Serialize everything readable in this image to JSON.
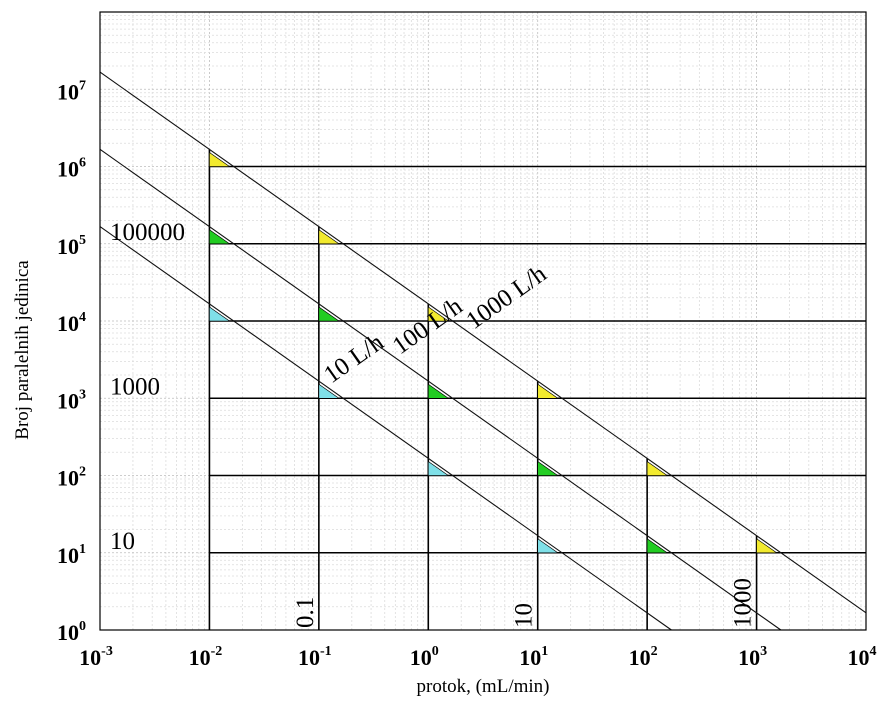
{
  "chart_data": {
    "type": "line",
    "x_scale": "log",
    "y_scale": "log",
    "xlim": [
      0.001,
      10000
    ],
    "ylim": [
      1,
      100000000
    ],
    "xlabel": "protok, (mL/min)",
    "ylabel": "Broj paralelnih jedinica",
    "x_ticks": [
      {
        "base": "10",
        "exp": "-3"
      },
      {
        "base": "10",
        "exp": "-2"
      },
      {
        "base": "10",
        "exp": "-1"
      },
      {
        "base": "10",
        "exp": "0"
      },
      {
        "base": "10",
        "exp": "1"
      },
      {
        "base": "10",
        "exp": "2"
      },
      {
        "base": "10",
        "exp": "3"
      },
      {
        "base": "10",
        "exp": "4"
      }
    ],
    "y_ticks": [
      {
        "base": "10",
        "exp": "0"
      },
      {
        "base": "10",
        "exp": "1"
      },
      {
        "base": "10",
        "exp": "2"
      },
      {
        "base": "10",
        "exp": "3"
      },
      {
        "base": "10",
        "exp": "4"
      },
      {
        "base": "10",
        "exp": "5"
      },
      {
        "base": "10",
        "exp": "6"
      },
      {
        "base": "10",
        "exp": "7"
      }
    ],
    "grid": true,
    "series": [
      {
        "name": "1000 L/h",
        "total_flow_mL_min": 16667,
        "marker_color": "#f2ea2e",
        "x": [
          0.001,
          10000
        ],
        "y": [
          16667000,
          1.6667
        ]
      },
      {
        "name": "100 L/h",
        "total_flow_mL_min": 1666.7,
        "marker_color": "#22cc22",
        "x": [
          0.001,
          1666.7
        ],
        "y": [
          1666700,
          1
        ]
      },
      {
        "name": "10 L/h",
        "total_flow_mL_min": 166.67,
        "marker_color": "#7fe0e8",
        "x": [
          0.001,
          166.67
        ],
        "y": [
          166670,
          1
        ]
      }
    ],
    "reference_lines": {
      "horizontal": [
        10,
        100,
        1000,
        10000,
        100000,
        1000000
      ],
      "vertical": [
        0.01,
        0.1,
        1,
        10,
        100,
        1000
      ]
    },
    "markers": [
      {
        "x": 0.01,
        "y": 1000000,
        "color": "#f2ea2e"
      },
      {
        "x": 0.1,
        "y": 100000,
        "color": "#f2ea2e"
      },
      {
        "x": 1,
        "y": 10000,
        "color": "#f2ea2e"
      },
      {
        "x": 10,
        "y": 1000,
        "color": "#f2ea2e"
      },
      {
        "x": 100,
        "y": 100,
        "color": "#f2ea2e"
      },
      {
        "x": 1000,
        "y": 10,
        "color": "#f2ea2e"
      },
      {
        "x": 0.01,
        "y": 100000,
        "color": "#22cc22"
      },
      {
        "x": 0.1,
        "y": 10000,
        "color": "#22cc22"
      },
      {
        "x": 1,
        "y": 1000,
        "color": "#22cc22"
      },
      {
        "x": 10,
        "y": 100,
        "color": "#22cc22"
      },
      {
        "x": 100,
        "y": 10,
        "color": "#22cc22"
      },
      {
        "x": 0.01,
        "y": 10000,
        "color": "#7fe0e8"
      },
      {
        "x": 0.1,
        "y": 1000,
        "color": "#7fe0e8"
      },
      {
        "x": 1,
        "y": 100,
        "color": "#7fe0e8"
      },
      {
        "x": 10,
        "y": 10,
        "color": "#7fe0e8"
      }
    ],
    "annotations": {
      "left_labels": [
        {
          "text": "100000",
          "y": 100000
        },
        {
          "text": "1000",
          "y": 1000
        },
        {
          "text": "10",
          "y": 10
        }
      ],
      "vertical_labels": [
        {
          "text": "0.1",
          "x": 0.1
        },
        {
          "text": "10",
          "x": 10
        },
        {
          "text": "1000",
          "x": 1000
        }
      ]
    }
  }
}
